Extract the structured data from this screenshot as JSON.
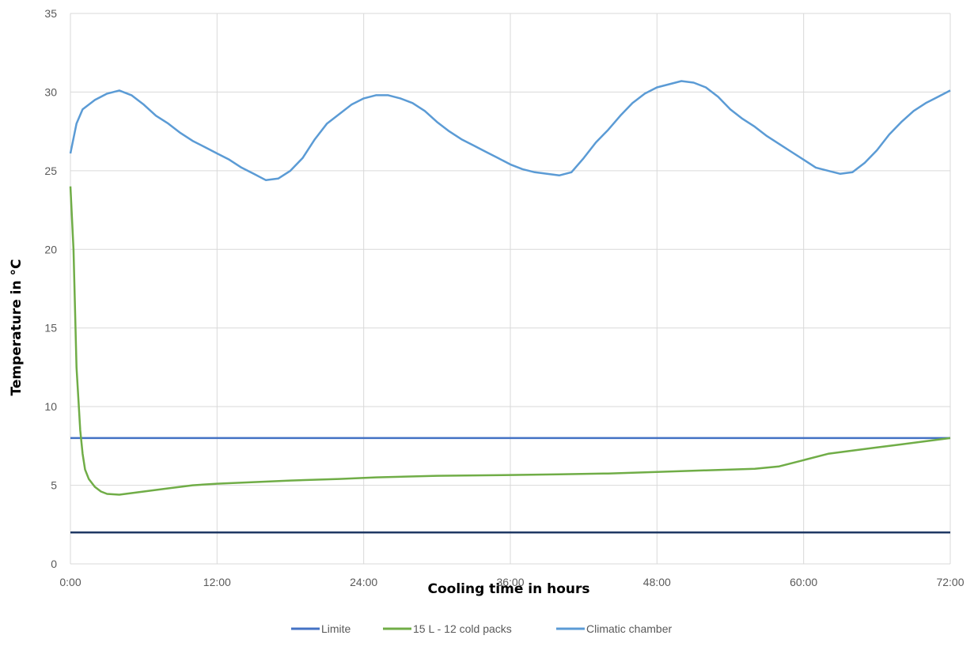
{
  "chart_data": {
    "type": "line",
    "xlabel": "Cooling time in hours",
    "ylabel": "Temperature in °C",
    "xlim": [
      0,
      72
    ],
    "ylim": [
      0,
      35
    ],
    "x_ticks": [
      {
        "value": 0,
        "label": "0:00"
      },
      {
        "value": 12,
        "label": "12:00"
      },
      {
        "value": 24,
        "label": "24:00"
      },
      {
        "value": 36,
        "label": "36:00"
      },
      {
        "value": 48,
        "label": "48:00"
      },
      {
        "value": 60,
        "label": "60:00"
      },
      {
        "value": 72,
        "label": "72:00"
      }
    ],
    "y_ticks": [
      {
        "value": 0,
        "label": "0"
      },
      {
        "value": 5,
        "label": "5"
      },
      {
        "value": 10,
        "label": "10"
      },
      {
        "value": 15,
        "label": "15"
      },
      {
        "value": 20,
        "label": "20"
      },
      {
        "value": 25,
        "label": "25"
      },
      {
        "value": 30,
        "label": "30"
      },
      {
        "value": 35,
        "label": "35"
      }
    ],
    "grid": true,
    "legend_position": "bottom",
    "series": [
      {
        "name": "Limite",
        "color": "#4472C4",
        "lines": [
          {
            "color": "#4472C4",
            "points": [
              [
                0,
                8
              ],
              [
                72,
                8
              ]
            ]
          },
          {
            "color": "#1F3864",
            "points": [
              [
                0,
                2
              ],
              [
                72,
                2
              ]
            ]
          }
        ]
      },
      {
        "name": "15 L - 12 cold packs",
        "color": "#70AD47",
        "points": [
          [
            0,
            24
          ],
          [
            0.25,
            20
          ],
          [
            0.5,
            12.5
          ],
          [
            0.8,
            8.5
          ],
          [
            1.0,
            7
          ],
          [
            1.2,
            6
          ],
          [
            1.5,
            5.4
          ],
          [
            2.0,
            4.9
          ],
          [
            2.5,
            4.6
          ],
          [
            3.0,
            4.45
          ],
          [
            4.0,
            4.4
          ],
          [
            6,
            4.6
          ],
          [
            8,
            4.8
          ],
          [
            10,
            5.0
          ],
          [
            12,
            5.1
          ],
          [
            15,
            5.2
          ],
          [
            18,
            5.3
          ],
          [
            22,
            5.4
          ],
          [
            25,
            5.5
          ],
          [
            30,
            5.6
          ],
          [
            36,
            5.65
          ],
          [
            40,
            5.7
          ],
          [
            44,
            5.75
          ],
          [
            48,
            5.85
          ],
          [
            52,
            5.95
          ],
          [
            56,
            6.05
          ],
          [
            58,
            6.2
          ],
          [
            60,
            6.6
          ],
          [
            62,
            7.0
          ],
          [
            64,
            7.2
          ],
          [
            66,
            7.4
          ],
          [
            68,
            7.6
          ],
          [
            70,
            7.8
          ],
          [
            72,
            8.0
          ]
        ]
      },
      {
        "name": "Climatic chamber",
        "color": "#5B9BD5",
        "points": [
          [
            0,
            26.1
          ],
          [
            0.5,
            28.0
          ],
          [
            1,
            28.9
          ],
          [
            2,
            29.5
          ],
          [
            3,
            29.9
          ],
          [
            4,
            30.1
          ],
          [
            5,
            29.8
          ],
          [
            6,
            29.2
          ],
          [
            7,
            28.5
          ],
          [
            8,
            28.0
          ],
          [
            9,
            27.4
          ],
          [
            10,
            26.9
          ],
          [
            11,
            26.5
          ],
          [
            12,
            26.1
          ],
          [
            13,
            25.7
          ],
          [
            14,
            25.2
          ],
          [
            15,
            24.8
          ],
          [
            16,
            24.4
          ],
          [
            17,
            24.5
          ],
          [
            18,
            25.0
          ],
          [
            19,
            25.8
          ],
          [
            20,
            27.0
          ],
          [
            21,
            28.0
          ],
          [
            22,
            28.6
          ],
          [
            23,
            29.2
          ],
          [
            24,
            29.6
          ],
          [
            25,
            29.8
          ],
          [
            26,
            29.8
          ],
          [
            27,
            29.6
          ],
          [
            28,
            29.3
          ],
          [
            29,
            28.8
          ],
          [
            30,
            28.1
          ],
          [
            31,
            27.5
          ],
          [
            32,
            27.0
          ],
          [
            33,
            26.6
          ],
          [
            34,
            26.2
          ],
          [
            35,
            25.8
          ],
          [
            36,
            25.4
          ],
          [
            37,
            25.1
          ],
          [
            38,
            24.9
          ],
          [
            39,
            24.8
          ],
          [
            40,
            24.7
          ],
          [
            41,
            24.9
          ],
          [
            42,
            25.8
          ],
          [
            43,
            26.8
          ],
          [
            44,
            27.6
          ],
          [
            45,
            28.5
          ],
          [
            46,
            29.3
          ],
          [
            47,
            29.9
          ],
          [
            48,
            30.3
          ],
          [
            49,
            30.5
          ],
          [
            50,
            30.7
          ],
          [
            51,
            30.6
          ],
          [
            52,
            30.3
          ],
          [
            53,
            29.7
          ],
          [
            54,
            28.9
          ],
          [
            55,
            28.3
          ],
          [
            56,
            27.8
          ],
          [
            57,
            27.2
          ],
          [
            58,
            26.7
          ],
          [
            59,
            26.2
          ],
          [
            60,
            25.7
          ],
          [
            61,
            25.2
          ],
          [
            62,
            25.0
          ],
          [
            63,
            24.8
          ],
          [
            64,
            24.9
          ],
          [
            65,
            25.5
          ],
          [
            66,
            26.3
          ],
          [
            67,
            27.3
          ],
          [
            68,
            28.1
          ],
          [
            69,
            28.8
          ],
          [
            70,
            29.3
          ],
          [
            71,
            29.7
          ],
          [
            72,
            30.1
          ]
        ]
      }
    ]
  }
}
